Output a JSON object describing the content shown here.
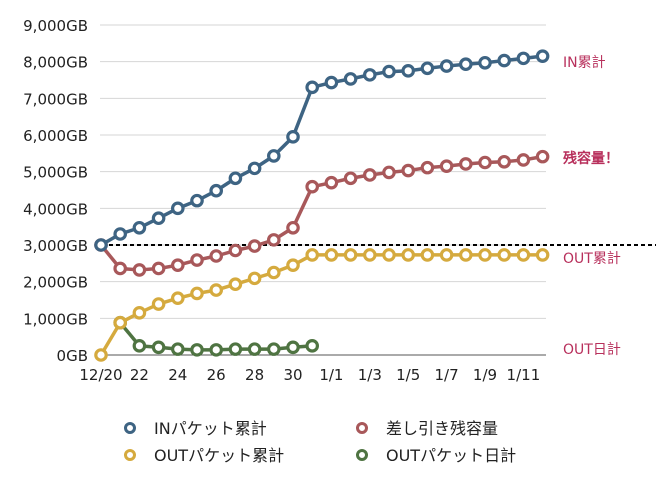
{
  "chart_data": {
    "type": "line",
    "title": "",
    "xlabel": "",
    "ylabel": "",
    "ylim": [
      0,
      9000
    ],
    "y_ticks": [
      "0GB",
      "1,000GB",
      "2,000GB",
      "3,000GB",
      "4,000GB",
      "5,000GB",
      "6,000GB",
      "7,000GB",
      "8,000GB",
      "9,000GB"
    ],
    "y_tick_values": [
      0,
      1000,
      2000,
      3000,
      4000,
      5000,
      6000,
      7000,
      8000,
      9000
    ],
    "grid": true,
    "legend_position": "bottom",
    "categories": [
      "12/20",
      "12/21",
      "12/22",
      "12/23",
      "12/24",
      "12/25",
      "12/26",
      "12/27",
      "12/28",
      "12/29",
      "12/30",
      "12/31",
      "1/1",
      "1/2",
      "1/3",
      "1/4",
      "1/5",
      "1/6",
      "1/7",
      "1/8",
      "1/9",
      "1/10",
      "1/11",
      "1/12"
    ],
    "x_tick_labels": [
      "12/20",
      "22",
      "24",
      "26",
      "28",
      "30",
      "1/1",
      "1/3",
      "1/5",
      "1/7",
      "1/9",
      "1/11"
    ],
    "x_tick_indices": [
      0,
      2,
      4,
      6,
      8,
      10,
      12,
      14,
      16,
      18,
      20,
      22
    ],
    "reference_line": {
      "value": 3000,
      "style": "dotted"
    },
    "series": [
      {
        "name": "INパケット累計",
        "color": "#3e6483",
        "values": [
          3000,
          3300,
          3470,
          3730,
          4000,
          4210,
          4480,
          4820,
          5090,
          5430,
          5950,
          7300,
          7430,
          7530,
          7640,
          7730,
          7750,
          7820,
          7880,
          7930,
          7970,
          8030,
          8090,
          8150
        ]
      },
      {
        "name": "差し引き残容量",
        "color": "#a8585a",
        "values": [
          3000,
          2360,
          2320,
          2360,
          2450,
          2590,
          2700,
          2850,
          2970,
          3140,
          3470,
          4590,
          4700,
          4820,
          4910,
          4980,
          5030,
          5110,
          5150,
          5210,
          5250,
          5270,
          5320,
          5410
        ]
      },
      {
        "name": "OUTパケット累計",
        "color": "#d5aa3e",
        "values": [
          0,
          880,
          1150,
          1390,
          1550,
          1680,
          1770,
          1930,
          2090,
          2250,
          2450,
          2730,
          2730,
          2730,
          2730,
          2730,
          2730,
          2730,
          2730,
          2730,
          2730,
          2730,
          2730,
          2730
        ]
      },
      {
        "name": "OUTパケット日計",
        "color": "#4f7442",
        "values": [
          null,
          880,
          250,
          210,
          160,
          140,
          140,
          160,
          160,
          160,
          210,
          250,
          null,
          null,
          null,
          null,
          null,
          null,
          null,
          null,
          null,
          null,
          null,
          null
        ]
      }
    ],
    "annotations": [
      {
        "text": "IN累計",
        "series": 0,
        "bold": false
      },
      {
        "text": "残容量！",
        "series": 1,
        "bold": true
      },
      {
        "text": "OUT累計",
        "series": 2,
        "bold": false
      },
      {
        "text": "OUT日計",
        "series": 3,
        "bold": false
      }
    ],
    "annotation_color": "#b8305c"
  }
}
